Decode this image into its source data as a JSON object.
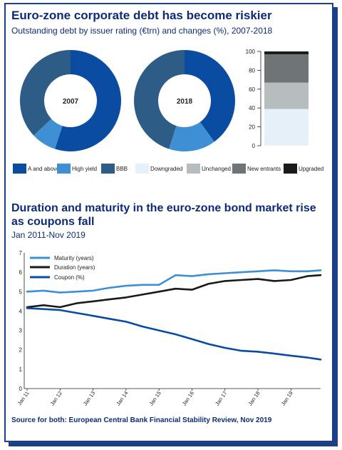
{
  "page": {
    "title1": "Euro-zone corporate debt has become riskier",
    "subtitle1": "Outstanding debt by issuer rating (€trn) and changes (%), 2007-2018",
    "title2_line1": "Duration and maturity in the euro-zone bond market rise",
    "title2_line2": "as coupons fall",
    "subtitle2": "Jan 2011-Nov 2019",
    "source": "Source for both: European Central Bank Financial Stability Review, Nov 2019"
  },
  "colors": {
    "a_and_above": "#0a4ca2",
    "high_yield": "#3f8fd4",
    "bbb": "#2d5c86",
    "downgraded": "#e6f0f8",
    "unchanged": "#b7bcbf",
    "new_entrants": "#6f7477",
    "upgraded": "#1a1a1a",
    "maturity": "#3f8fd4",
    "duration": "#1a1a1a",
    "coupon": "#0a4ca2",
    "frame": "#1d3f8a"
  },
  "chart_data": [
    {
      "type": "pie",
      "variant": "donut",
      "center_label": "2007",
      "categories": [
        "A and above",
        "High yield",
        "BBB"
      ],
      "values": [
        55,
        8,
        37
      ]
    },
    {
      "type": "pie",
      "variant": "donut",
      "center_label": "2018",
      "categories": [
        "A and above",
        "High yield",
        "BBB"
      ],
      "values": [
        40,
        15,
        45
      ]
    },
    {
      "type": "bar",
      "stacked": true,
      "categories": [
        ""
      ],
      "series": [
        {
          "name": "Downgraded",
          "values": [
            39
          ]
        },
        {
          "name": "Unchanged",
          "values": [
            28
          ]
        },
        {
          "name": "New entrants",
          "values": [
            30
          ]
        },
        {
          "name": "Upgraded",
          "values": [
            3
          ]
        }
      ],
      "ylim": [
        0,
        100
      ],
      "yticks": [
        0,
        20,
        40,
        60,
        80,
        100
      ]
    },
    {
      "type": "line",
      "x_labels": [
        "Jan 11",
        "Jan 12",
        "Jan 13",
        "Jan 14",
        "Jan 15",
        "Jan 16",
        "Jan 17",
        "Jan 18",
        "Jan 19"
      ],
      "x_range": [
        2011.0,
        2019.9
      ],
      "ylim": [
        0,
        7
      ],
      "yticks": [
        0,
        1,
        2,
        3,
        4,
        5,
        6,
        7
      ],
      "legend_position": "top-left",
      "series": [
        {
          "name": "Maturity (years)",
          "x": [
            2011.0,
            2011.5,
            2012.0,
            2012.5,
            2013.0,
            2013.5,
            2014.0,
            2014.5,
            2015.0,
            2015.5,
            2016.0,
            2016.5,
            2017.0,
            2017.5,
            2018.0,
            2018.5,
            2019.0,
            2019.5,
            2019.9
          ],
          "y": [
            5.0,
            5.05,
            4.95,
            5.0,
            5.05,
            5.2,
            5.3,
            5.35,
            5.35,
            5.85,
            5.8,
            5.9,
            5.95,
            6.0,
            6.05,
            6.1,
            6.05,
            6.05,
            6.1
          ]
        },
        {
          "name": "Duration (years)",
          "x": [
            2011.0,
            2011.5,
            2012.0,
            2012.5,
            2013.0,
            2013.5,
            2014.0,
            2014.5,
            2015.0,
            2015.5,
            2016.0,
            2016.5,
            2017.0,
            2017.5,
            2018.0,
            2018.5,
            2019.0,
            2019.5,
            2019.9
          ],
          "y": [
            4.2,
            4.3,
            4.2,
            4.4,
            4.5,
            4.6,
            4.7,
            4.85,
            5.0,
            5.15,
            5.1,
            5.4,
            5.55,
            5.6,
            5.65,
            5.55,
            5.6,
            5.8,
            5.85
          ]
        },
        {
          "name": "Coupon (%)",
          "x": [
            2011.0,
            2011.5,
            2012.0,
            2012.5,
            2013.0,
            2013.5,
            2014.0,
            2014.5,
            2015.0,
            2015.5,
            2016.0,
            2016.5,
            2017.0,
            2017.5,
            2018.0,
            2018.5,
            2019.0,
            2019.5,
            2019.9
          ],
          "y": [
            4.15,
            4.1,
            4.05,
            3.9,
            3.75,
            3.6,
            3.45,
            3.2,
            3.0,
            2.8,
            2.55,
            2.3,
            2.1,
            1.95,
            1.9,
            1.8,
            1.7,
            1.6,
            1.5
          ]
        }
      ]
    }
  ]
}
